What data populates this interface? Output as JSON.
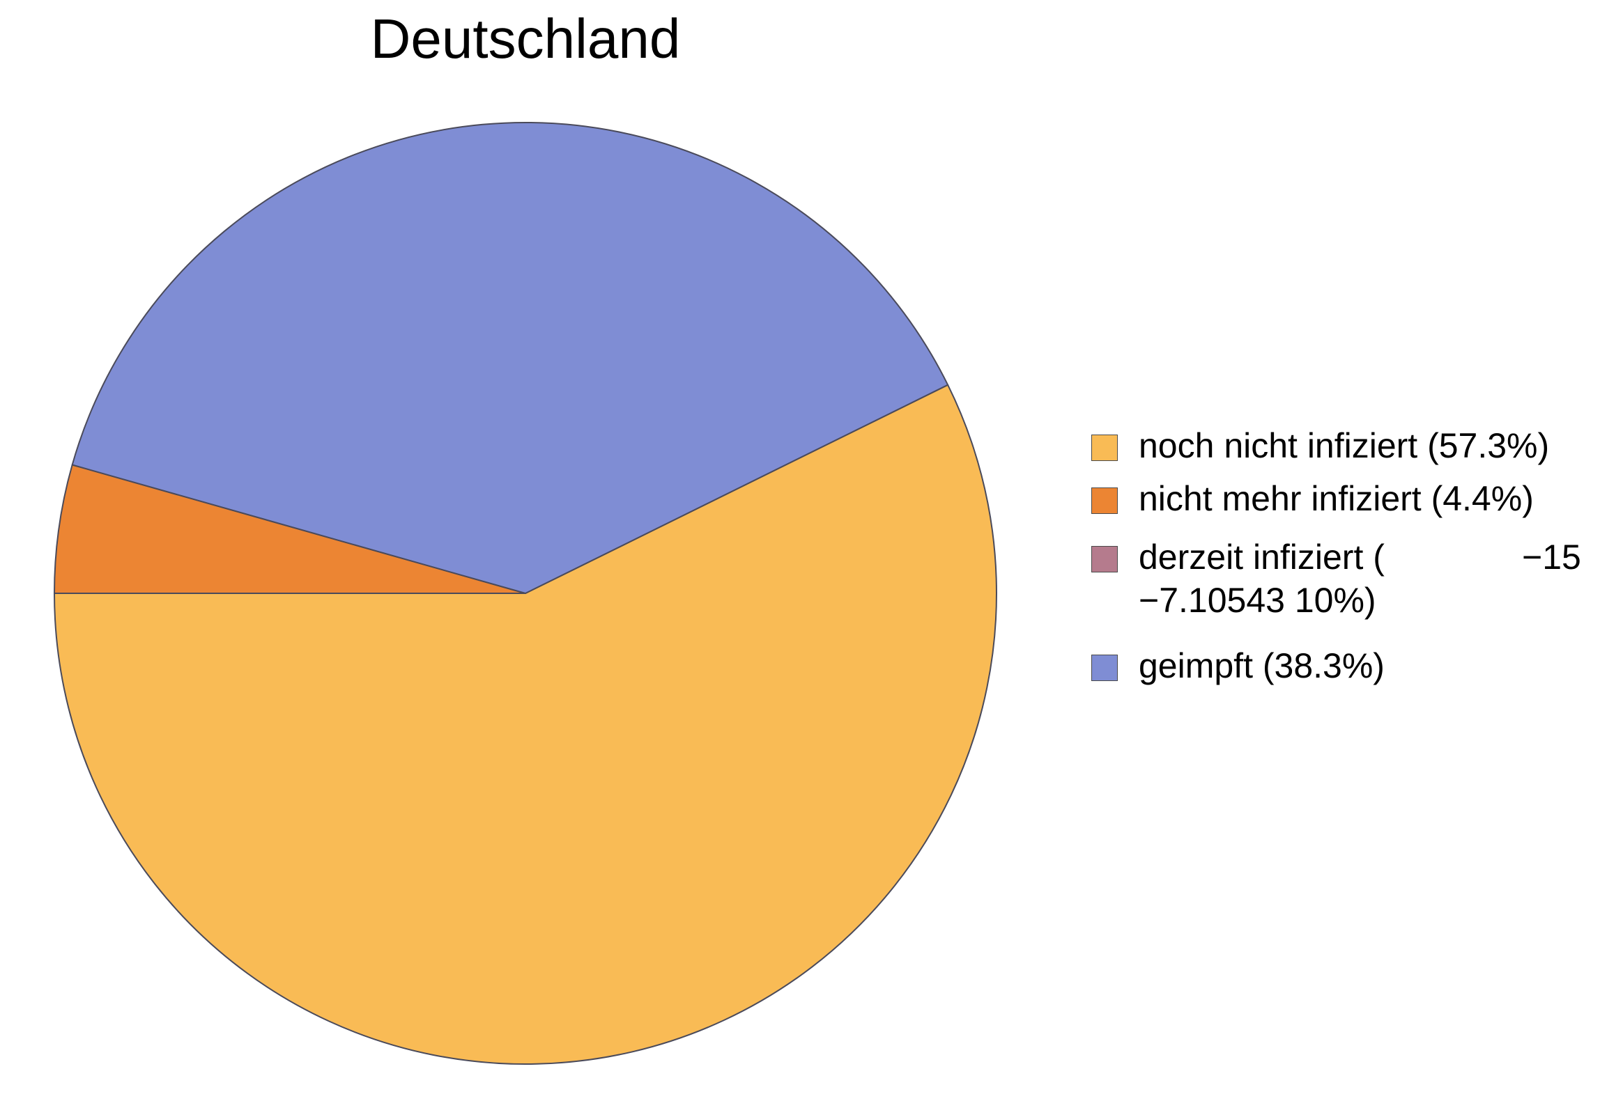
{
  "chart_data": {
    "type": "pie",
    "title": "Deutschland",
    "legend_position": "right",
    "slices": [
      {
        "label": "noch nicht infiziert (57.3%)",
        "value": 57.3,
        "color": "#F9BB55"
      },
      {
        "label": "nicht mehr infiziert (4.4%)",
        "value": 4.4,
        "color": "#EC8533"
      },
      {
        "label": "derzeit infiziert (",
        "label_superscript": "−15",
        "label_line2": "−7.10543 10%)",
        "value": 0,
        "color": "#B57B8D"
      },
      {
        "label": "geimpft (38.3%)",
        "value": 38.3,
        "color": "#7F8DD4"
      }
    ]
  }
}
